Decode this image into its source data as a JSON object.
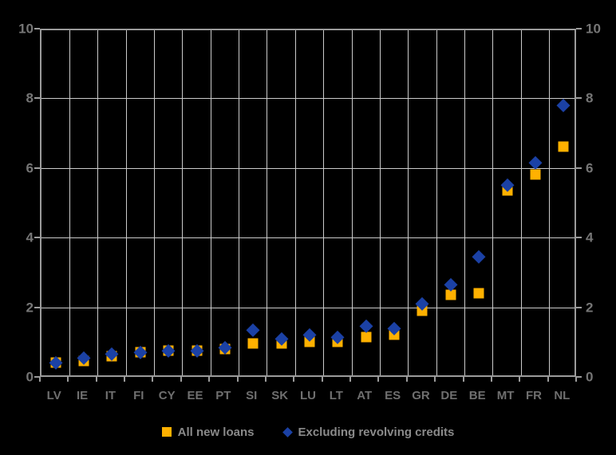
{
  "chart_data": {
    "type": "scatter",
    "categories": [
      "LV",
      "IE",
      "IT",
      "FI",
      "CY",
      "EE",
      "PT",
      "SI",
      "SK",
      "LU",
      "LT",
      "AT",
      "ES",
      "GR",
      "DE",
      "BE",
      "MT",
      "FR",
      "NL"
    ],
    "series": [
      {
        "name": "All new loans",
        "marker": "square",
        "color": "#FFB100",
        "values": [
          0.45,
          0.5,
          0.65,
          0.75,
          0.8,
          0.8,
          0.85,
          1.0,
          1.0,
          1.05,
          1.05,
          1.2,
          1.25,
          1.95,
          2.4,
          2.45,
          5.4,
          5.85,
          6.65
        ]
      },
      {
        "name": "Excluding revolving credits",
        "marker": "diamond",
        "color": "#1B41A5",
        "values": [
          0.45,
          0.6,
          0.7,
          0.75,
          0.8,
          0.8,
          0.9,
          1.4,
          1.15,
          1.25,
          1.2,
          1.5,
          1.45,
          2.15,
          2.7,
          3.5,
          5.55,
          6.2,
          7.85
        ]
      }
    ],
    "title": "",
    "xlabel": "",
    "ylabel": "",
    "ylim": [
      0,
      10
    ],
    "yticks": [
      0,
      2,
      4,
      6,
      8,
      10
    ],
    "y_axis_left": true,
    "y_axis_right": true,
    "grid": true,
    "legend_position": "bottom",
    "background_color": "#000000",
    "gridline_color": "#cbcbcb",
    "axis_color": "#9b9b9b",
    "label_color": "#767676"
  },
  "legend": {
    "items": [
      {
        "label": "All new loans",
        "color": "#FFB100",
        "marker": "square"
      },
      {
        "label": "Excluding revolving credits",
        "color": "#1B41A5",
        "marker": "diamond"
      }
    ]
  }
}
